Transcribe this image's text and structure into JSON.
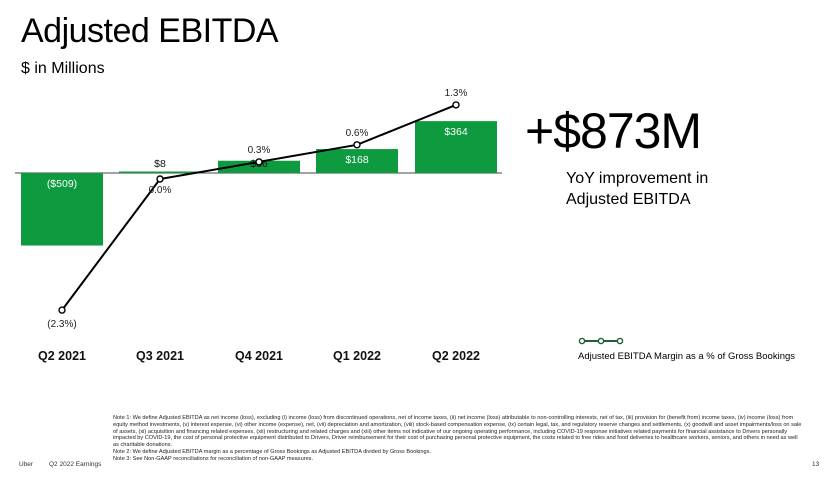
{
  "header": {
    "title": "Adjusted EBITDA",
    "subtitle": "$ in Millions"
  },
  "highlight": {
    "value": "+$873M",
    "caption_line1": "YoY improvement in",
    "caption_line2": "Adjusted EBITDA"
  },
  "chart_data": {
    "type": "bar",
    "categories": [
      "Q2 2021",
      "Q3 2021",
      "Q4 2021",
      "Q1 2022",
      "Q2 2022"
    ],
    "series": [
      {
        "values": [
          -509,
          8,
          86,
          168,
          364
        ],
        "labels": [
          "($509)",
          "$8",
          "$86",
          "$168",
          "$364"
        ],
        "color": "#0e9a3e"
      },
      {
        "name": "Adjusted EBITDA Margin as a % of Gross Bookings",
        "type": "line",
        "values": [
          -2.3,
          0.0,
          0.3,
          0.6,
          1.3
        ],
        "labels": [
          "(2.3%)",
          "0.0%",
          "0.3%",
          "0.6%",
          "1.3%"
        ],
        "color": "#000000"
      }
    ],
    "legend": "bottom-right",
    "grid": false
  },
  "legend": {
    "label": "Adjusted EBITDA Margin as a % of Gross Bookings"
  },
  "footnotes": {
    "note1": "Note 1: We define Adjusted EBITDA as net income (loss), excluding (i) income (loss) from discontinued operations, net of income taxes, (ii) net income (loss) attributable to non-controlling interests, net of tax, (iii) provision for (benefit from) income taxes, (iv) income (loss) from equity method investments, (v) interest expense, (vi) other income (expense), net, (vii) depreciation and amortization, (viii) stock-based compensation expense, (ix) certain legal, tax, and regulatory reserve changes and settlements, (x) goodwill and asset impairments/loss on sale of assets, (xi) acquisition and financing related expenses, (xii) restructuring and related charges and (xiii) other items not indicative of our ongoing operating performance, including COVID-19 response initiatives related payments for financial assistance to Drivers personally impacted by COVID-19, the cost of personal protective equipment distributed to Drivers, Driver reimbursement for their cost of purchasing personal protective equipment, the costs related to free rides and food deliveries to healthcare workers, seniors, and others in need as well as charitable donations.",
    "note2": "Note 2: We define Adjusted EBITDA margin as a percentage of Gross Bookings as Adjusted EBITDA divided by Gross Bookings.",
    "note3": "Note 3: See Non-GAAP reconciliations for reconciliation of non-GAAP measures."
  },
  "footer": {
    "company": "Uber",
    "report": "Q2 2022 Earnings",
    "page": "13"
  }
}
